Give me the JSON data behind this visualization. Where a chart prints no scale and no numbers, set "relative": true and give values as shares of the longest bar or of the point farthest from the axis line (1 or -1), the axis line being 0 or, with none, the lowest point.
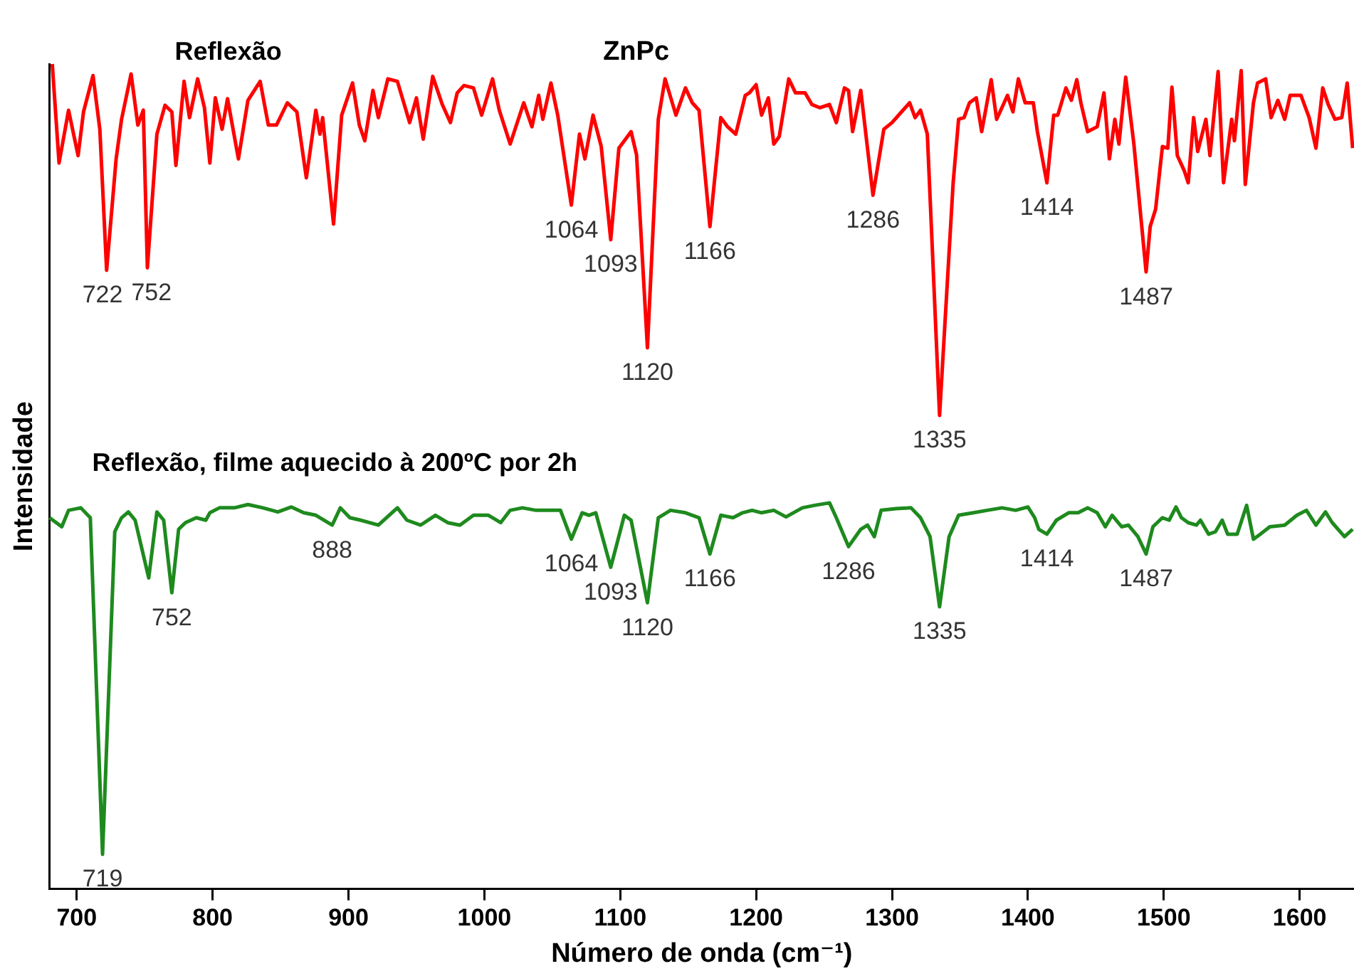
{
  "chart_data": {
    "type": "line",
    "title": "ZnPc",
    "xlabel": "Número de onda (cm⁻¹)",
    "ylabel": "Intensidade",
    "relative": true,
    "legend": false,
    "grid": false,
    "marker": "none",
    "xlim": [
      680,
      1640
    ],
    "xticks": [
      700,
      800,
      900,
      1000,
      1100,
      1200,
      1300,
      1400,
      1500,
      1600
    ],
    "series": [
      {
        "name": "Reflexão",
        "color": "#ff0000",
        "x": [
          682,
          687,
          694,
          701,
          705,
          712,
          717,
          722,
          729,
          733,
          740,
          745,
          749,
          752,
          759,
          765,
          770,
          773,
          779,
          783,
          789,
          794,
          798,
          802,
          807,
          811,
          819,
          826,
          835,
          841,
          847,
          855,
          862,
          869,
          876,
          879,
          881,
          889,
          895,
          903,
          908,
          912,
          918,
          922,
          929,
          936,
          945,
          950,
          955,
          962,
          969,
          975,
          980,
          985,
          992,
          998,
          1006,
          1011,
          1019,
          1029,
          1035,
          1040,
          1043,
          1049,
          1054,
          1064,
          1070,
          1074,
          1080,
          1086,
          1093,
          1099,
          1108,
          1112,
          1120,
          1128,
          1133,
          1141,
          1148,
          1153,
          1158,
          1166,
          1174,
          1179,
          1185,
          1192,
          1195,
          1200,
          1204,
          1209,
          1213,
          1217,
          1224,
          1229,
          1236,
          1241,
          1247,
          1254,
          1259,
          1265,
          1268,
          1271,
          1277,
          1286,
          1294,
          1300,
          1307,
          1313,
          1317,
          1321,
          1326,
          1335,
          1345,
          1349,
          1353,
          1357,
          1362,
          1366,
          1373,
          1377,
          1385,
          1389,
          1393,
          1398,
          1404,
          1407,
          1414,
          1419,
          1422,
          1428,
          1432,
          1436,
          1439,
          1444,
          1451,
          1456,
          1460,
          1464,
          1467,
          1472,
          1478,
          1487,
          1490,
          1494,
          1499,
          1503,
          1506,
          1510,
          1515,
          1518,
          1522,
          1525,
          1531,
          1534,
          1540,
          1544,
          1550,
          1552,
          1557,
          1560,
          1566,
          1569,
          1575,
          1579,
          1584,
          1589,
          1593,
          1601,
          1607,
          1612,
          1617,
          1621,
          1626,
          1631,
          1635,
          1639
        ],
        "values": [
          1.0,
          0.88,
          0.944,
          0.889,
          0.942,
          0.986,
          0.921,
          0.75,
          0.885,
          0.933,
          0.988,
          0.926,
          0.944,
          0.753,
          0.915,
          0.95,
          0.942,
          0.877,
          0.979,
          0.935,
          0.982,
          0.947,
          0.88,
          0.959,
          0.921,
          0.958,
          0.885,
          0.956,
          0.979,
          0.926,
          0.926,
          0.953,
          0.942,
          0.862,
          0.944,
          0.915,
          0.935,
          0.806,
          0.938,
          0.977,
          0.926,
          0.907,
          0.968,
          0.935,
          0.982,
          0.979,
          0.929,
          0.959,
          0.909,
          0.985,
          0.951,
          0.929,
          0.965,
          0.974,
          0.971,
          0.938,
          0.982,
          0.944,
          0.903,
          0.953,
          0.924,
          0.962,
          0.933,
          0.977,
          0.938,
          0.829,
          0.915,
          0.885,
          0.938,
          0.9,
          0.787,
          0.898,
          0.918,
          0.89,
          0.656,
          0.933,
          0.982,
          0.938,
          0.971,
          0.953,
          0.944,
          0.803,
          0.935,
          0.924,
          0.915,
          0.962,
          0.965,
          0.975,
          0.938,
          0.959,
          0.903,
          0.912,
          0.982,
          0.965,
          0.965,
          0.951,
          0.947,
          0.951,
          0.929,
          0.971,
          0.968,
          0.918,
          0.968,
          0.841,
          0.921,
          0.929,
          0.942,
          0.953,
          0.935,
          0.944,
          0.915,
          0.574,
          0.856,
          0.933,
          0.935,
          0.953,
          0.959,
          0.918,
          0.981,
          0.933,
          0.962,
          0.942,
          0.982,
          0.953,
          0.953,
          0.918,
          0.856,
          0.938,
          0.938,
          0.971,
          0.956,
          0.981,
          0.953,
          0.918,
          0.924,
          0.965,
          0.885,
          0.933,
          0.903,
          0.984,
          0.903,
          0.748,
          0.803,
          0.824,
          0.9,
          0.898,
          0.972,
          0.889,
          0.871,
          0.856,
          0.935,
          0.894,
          0.933,
          0.889,
          0.991,
          0.856,
          0.933,
          0.907,
          0.992,
          0.854,
          0.953,
          0.977,
          0.982,
          0.935,
          0.956,
          0.933,
          0.962,
          0.962,
          0.935,
          0.898,
          0.971,
          0.951,
          0.933,
          0.935,
          0.977,
          0.898
        ]
      },
      {
        "name": "Reflexão, filme aquecido à 200ºC por 2h",
        "color": "#1e8a1e",
        "x": [
          680,
          689,
          694,
          703,
          710,
          719,
          728,
          733,
          738,
          743,
          753,
          759,
          764,
          770,
          775,
          780,
          788,
          795,
          798,
          805,
          816,
          826,
          837,
          848,
          858,
          867,
          876,
          888,
          894,
          901,
          909,
          922,
          936,
          943,
          953,
          964,
          973,
          982,
          992,
          1003,
          1012,
          1019,
          1028,
          1038,
          1049,
          1056,
          1064,
          1072,
          1077,
          1082,
          1093,
          1097,
          1103,
          1108,
          1120,
          1128,
          1137,
          1148,
          1158,
          1166,
          1174,
          1183,
          1190,
          1197,
          1204,
          1213,
          1222,
          1234,
          1243,
          1254,
          1259,
          1268,
          1277,
          1282,
          1287,
          1292,
          1303,
          1314,
          1321,
          1328,
          1335,
          1342,
          1349,
          1360,
          1370,
          1381,
          1391,
          1400,
          1405,
          1408,
          1414,
          1421,
          1430,
          1437,
          1444,
          1451,
          1457,
          1462,
          1469,
          1474,
          1481,
          1487,
          1492,
          1499,
          1504,
          1509,
          1513,
          1518,
          1524,
          1527,
          1533,
          1538,
          1543,
          1547,
          1554,
          1561,
          1566,
          1571,
          1578,
          1589,
          1598,
          1605,
          1612,
          1619,
          1624,
          1633,
          1639
        ],
        "values": [
          0.45,
          0.439,
          0.459,
          0.462,
          0.45,
          0.042,
          0.433,
          0.45,
          0.457,
          0.447,
          0.377,
          0.457,
          0.447,
          0.359,
          0.436,
          0.444,
          0.45,
          0.447,
          0.456,
          0.462,
          0.462,
          0.466,
          0.462,
          0.457,
          0.463,
          0.456,
          0.453,
          0.441,
          0.462,
          0.45,
          0.447,
          0.441,
          0.462,
          0.447,
          0.441,
          0.453,
          0.444,
          0.441,
          0.453,
          0.453,
          0.444,
          0.459,
          0.462,
          0.459,
          0.459,
          0.459,
          0.424,
          0.456,
          0.453,
          0.456,
          0.39,
          0.415,
          0.453,
          0.447,
          0.347,
          0.45,
          0.459,
          0.456,
          0.45,
          0.406,
          0.453,
          0.45,
          0.456,
          0.459,
          0.456,
          0.459,
          0.451,
          0.462,
          0.465,
          0.468,
          0.45,
          0.415,
          0.436,
          0.441,
          0.427,
          0.459,
          0.461,
          0.462,
          0.45,
          0.427,
          0.342,
          0.427,
          0.453,
          0.456,
          0.459,
          0.462,
          0.459,
          0.463,
          0.45,
          0.436,
          0.43,
          0.447,
          0.456,
          0.456,
          0.462,
          0.456,
          0.439,
          0.453,
          0.439,
          0.441,
          0.427,
          0.406,
          0.439,
          0.45,
          0.447,
          0.463,
          0.45,
          0.444,
          0.441,
          0.447,
          0.43,
          0.433,
          0.447,
          0.43,
          0.43,
          0.465,
          0.424,
          0.43,
          0.439,
          0.441,
          0.453,
          0.459,
          0.441,
          0.457,
          0.444,
          0.427,
          0.436
        ]
      }
    ],
    "annotations": [
      {
        "text": "722",
        "x": 722,
        "y": 0.75
      },
      {
        "text": "752",
        "x": 752,
        "y": 0.753
      },
      {
        "text": "1064",
        "x": 1064,
        "y": 0.829
      },
      {
        "text": "1093",
        "x": 1093,
        "y": 0.787
      },
      {
        "text": "1120",
        "x": 1120,
        "y": 0.656
      },
      {
        "text": "1166",
        "x": 1166,
        "y": 0.803
      },
      {
        "text": "1286",
        "x": 1286,
        "y": 0.841
      },
      {
        "text": "1335",
        "x": 1335,
        "y": 0.574
      },
      {
        "text": "1414",
        "x": 1414,
        "y": 0.856
      },
      {
        "text": "1487",
        "x": 1487,
        "y": 0.748
      },
      {
        "text": "719",
        "x": 719,
        "y": 0.042
      },
      {
        "text": "752",
        "x": 770,
        "y": 0.359
      },
      {
        "text": "888",
        "x": 888,
        "y": 0.441
      },
      {
        "text": "1064",
        "x": 1064,
        "y": 0.424
      },
      {
        "text": "1093",
        "x": 1093,
        "y": 0.39
      },
      {
        "text": "1120",
        "x": 1120,
        "y": 0.347
      },
      {
        "text": "1166",
        "x": 1166,
        "y": 0.406
      },
      {
        "text": "1286",
        "x": 1268,
        "y": 0.415
      },
      {
        "text": "1335",
        "x": 1335,
        "y": 0.342
      },
      {
        "text": "1414",
        "x": 1414,
        "y": 0.43
      },
      {
        "text": "1487",
        "x": 1487,
        "y": 0.406
      }
    ]
  }
}
